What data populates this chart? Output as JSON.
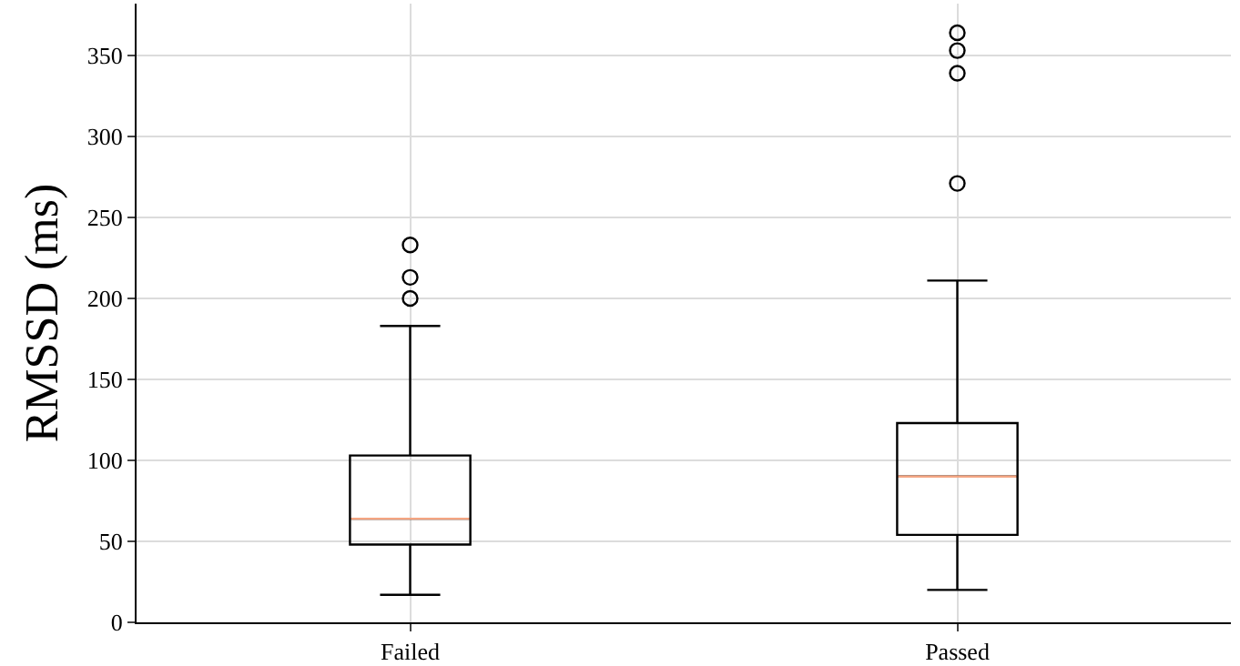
{
  "chart_data": {
    "type": "box",
    "ylabel": "RMSSD (ms)",
    "categories": [
      "Failed",
      "Passed"
    ],
    "series": [
      {
        "color": "#000000",
        "boxes": [
          {
            "low": 17,
            "q1": 48,
            "median": 64,
            "q3": 103,
            "high": 183,
            "outliers": [
              200,
              213,
              233
            ]
          },
          {
            "low": 20,
            "q1": 54,
            "median": 90,
            "q3": 123,
            "high": 211,
            "outliers": [
              271,
              339,
              353,
              364
            ]
          }
        ]
      }
    ],
    "ylim": [
      0,
      382
    ],
    "yticks": [
      0,
      50,
      100,
      150,
      200,
      250,
      300,
      350
    ],
    "grid": true
  }
}
